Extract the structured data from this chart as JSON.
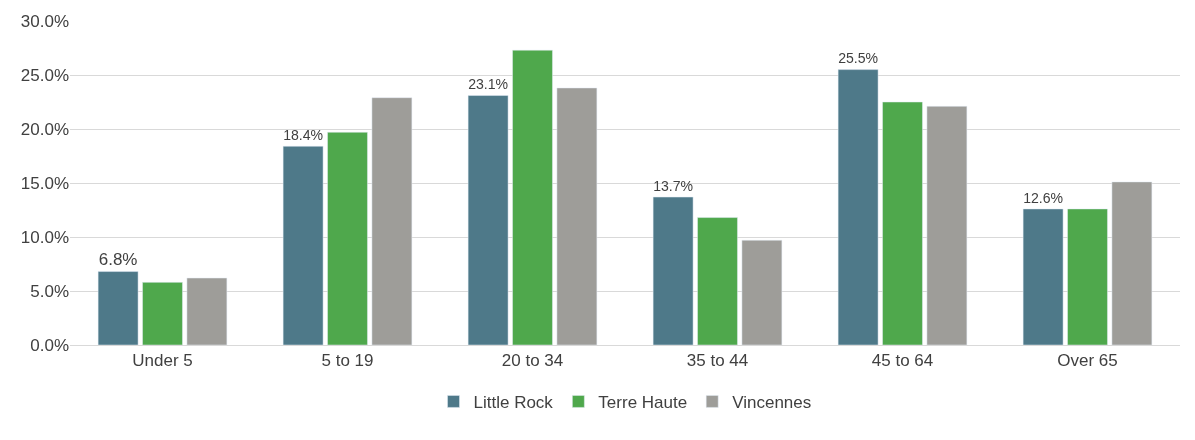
{
  "chart_data": {
    "type": "bar",
    "categories": [
      "Under 5",
      "5 to 19",
      "20 to 34",
      "35 to 44",
      "45 to 64",
      "Over 65"
    ],
    "series": [
      {
        "name": "Little Rock",
        "color": "#4e7989",
        "values": [
          6.8,
          18.4,
          23.1,
          13.7,
          25.5,
          12.6
        ],
        "value_labels": [
          "6.8%",
          "18.4%",
          "23.1%",
          "13.7%",
          "25.5%",
          "12.6%"
        ]
      },
      {
        "name": "Terre Haute",
        "color": "#4fa84c",
        "values": [
          5.8,
          19.7,
          27.3,
          11.8,
          22.5,
          12.6
        ]
      },
      {
        "name": "Vincennes",
        "color": "#9e9d99",
        "values": [
          6.2,
          22.9,
          23.8,
          9.7,
          22.1,
          15.1
        ]
      }
    ],
    "ylim": [
      0,
      30
    ],
    "yticks": [
      {
        "value": 0,
        "label": "0.0%"
      },
      {
        "value": 5,
        "label": "5.0%"
      },
      {
        "value": 10,
        "label": "10.0%"
      },
      {
        "value": 15,
        "label": "15.0%"
      },
      {
        "value": 20,
        "label": "20.0%"
      },
      {
        "value": 25,
        "label": "25.0%"
      },
      {
        "value": 30,
        "label": "30.0%"
      }
    ],
    "grid": "y",
    "legend": "bottom"
  }
}
